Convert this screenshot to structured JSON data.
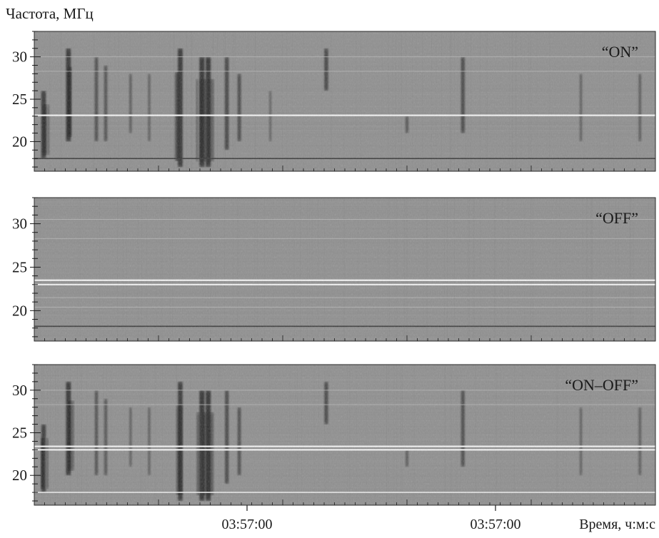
{
  "chart_data": {
    "type": "heatmap",
    "ylabel": "Частота, МГц",
    "xlabel": "Время, ч:м:с",
    "x_tick_labels": [
      "03:57:00",
      "03:57:00"
    ],
    "colors": {
      "background": "#8f8f8f",
      "burst": "#1f1f1f",
      "line": "#f2f2f2"
    },
    "panels": [
      {
        "label": "“ON”",
        "ylim": [
          16.5,
          33
        ],
        "yticks": [
          20,
          25,
          30
        ],
        "bright_lines_mhz": [
          23.1
        ],
        "faint_lines_mhz": [
          30.0,
          28.3
        ],
        "dark_lines_mhz": [
          18.0
        ],
        "bursts": [
          {
            "t": 0.015,
            "f": [
              18,
              26
            ],
            "s": 0.9
          },
          {
            "t": 0.055,
            "f": [
              20,
              31
            ],
            "s": 0.95
          },
          {
            "t": 0.1,
            "f": [
              20,
              30
            ],
            "s": 0.55
          },
          {
            "t": 0.115,
            "f": [
              20,
              29
            ],
            "s": 0.5
          },
          {
            "t": 0.155,
            "f": [
              21,
              28
            ],
            "s": 0.35
          },
          {
            "t": 0.185,
            "f": [
              20,
              28
            ],
            "s": 0.3
          },
          {
            "t": 0.235,
            "f": [
              17,
              31
            ],
            "s": 0.95
          },
          {
            "t": 0.27,
            "f": [
              17,
              30
            ],
            "s": 1.0
          },
          {
            "t": 0.28,
            "f": [
              17,
              30
            ],
            "s": 1.0
          },
          {
            "t": 0.31,
            "f": [
              19,
              30
            ],
            "s": 0.7
          },
          {
            "t": 0.33,
            "f": [
              20,
              28
            ],
            "s": 0.6
          },
          {
            "t": 0.38,
            "f": [
              20,
              26
            ],
            "s": 0.25
          },
          {
            "t": 0.47,
            "f": [
              26,
              31
            ],
            "s": 0.7
          },
          {
            "t": 0.6,
            "f": [
              21,
              23
            ],
            "s": 0.45
          },
          {
            "t": 0.69,
            "f": [
              21,
              30
            ],
            "s": 0.65
          },
          {
            "t": 0.88,
            "f": [
              20,
              28
            ],
            "s": 0.3
          },
          {
            "t": 0.975,
            "f": [
              20,
              28
            ],
            "s": 0.35
          }
        ]
      },
      {
        "label": "“OFF”",
        "ylim": [
          16.5,
          33
        ],
        "yticks": [
          20,
          25,
          30
        ],
        "bright_lines_mhz": [
          23.5,
          23.0
        ],
        "faint_lines_mhz": [
          30.5,
          28.3,
          21.5,
          20.4
        ],
        "dark_lines_mhz": [
          18.2
        ],
        "bursts": []
      },
      {
        "label": "“ON–OFF”",
        "ylim": [
          16.5,
          33
        ],
        "yticks": [
          20,
          25,
          30
        ],
        "bright_lines_mhz": [
          23.4,
          23.0
        ],
        "faint_lines_mhz": [
          30.0,
          28.3
        ],
        "dark_lines_mhz": [],
        "white_lines_mhz": [
          18.0
        ],
        "bursts": [
          {
            "t": 0.015,
            "f": [
              18,
              26
            ],
            "s": 0.85
          },
          {
            "t": 0.055,
            "f": [
              20,
              31
            ],
            "s": 0.95
          },
          {
            "t": 0.1,
            "f": [
              20,
              30
            ],
            "s": 0.5
          },
          {
            "t": 0.115,
            "f": [
              20,
              29
            ],
            "s": 0.45
          },
          {
            "t": 0.155,
            "f": [
              21,
              28
            ],
            "s": 0.3
          },
          {
            "t": 0.185,
            "f": [
              20,
              28
            ],
            "s": 0.3
          },
          {
            "t": 0.235,
            "f": [
              17,
              31
            ],
            "s": 0.9
          },
          {
            "t": 0.27,
            "f": [
              17,
              30
            ],
            "s": 1.0
          },
          {
            "t": 0.28,
            "f": [
              17,
              30
            ],
            "s": 1.0
          },
          {
            "t": 0.31,
            "f": [
              19,
              30
            ],
            "s": 0.65
          },
          {
            "t": 0.33,
            "f": [
              20,
              28
            ],
            "s": 0.55
          },
          {
            "t": 0.47,
            "f": [
              26,
              31
            ],
            "s": 0.65
          },
          {
            "t": 0.6,
            "f": [
              21,
              23
            ],
            "s": 0.4
          },
          {
            "t": 0.69,
            "f": [
              21,
              30
            ],
            "s": 0.6
          },
          {
            "t": 0.88,
            "f": [
              20,
              28
            ],
            "s": 0.3
          },
          {
            "t": 0.975,
            "f": [
              20,
              28
            ],
            "s": 0.35
          }
        ]
      }
    ]
  }
}
